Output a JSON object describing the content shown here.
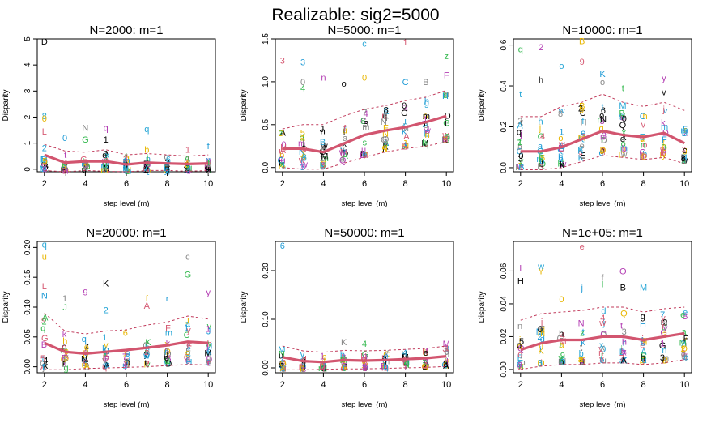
{
  "figure": {
    "title": "Realizable: sig2=5000"
  },
  "colors": {
    "axis": "#000000",
    "mean_line": "#d2556f",
    "band": "#c0395a",
    "points": [
      "#000000",
      "#d65a73",
      "#33b84e",
      "#26a6d6",
      "#1f9bd6",
      "#b33db3",
      "#e8b600",
      "#888888"
    ]
  },
  "chart_data": [
    {
      "type": "scatter",
      "title": "N=2000: m=1",
      "xlabel": "step level (m)",
      "ylabel": "Disparity",
      "xlim": [
        2,
        10
      ],
      "ylim": [
        -0.1,
        5.0
      ],
      "xticks": [
        2,
        4,
        6,
        8,
        10
      ],
      "yticks": [
        0,
        1,
        2,
        3,
        4,
        5
      ],
      "ytick_labels": [
        "0",
        "1",
        "2",
        "3",
        "4",
        "5"
      ],
      "x": [
        2,
        3,
        4,
        5,
        6,
        7,
        8,
        9,
        10
      ],
      "mean": [
        0.55,
        0.25,
        0.3,
        0.3,
        0.18,
        0.25,
        0.22,
        0.2,
        0.22
      ],
      "upper": [
        0.95,
        0.7,
        0.65,
        0.75,
        0.55,
        0.6,
        0.55,
        0.5,
        0.55
      ],
      "lower": [
        -0.05,
        -0.1,
        -0.05,
        -0.08,
        -0.1,
        -0.05,
        -0.05,
        -0.08,
        -0.05
      ],
      "outliers": [
        {
          "x": 2,
          "y": 4.9,
          "label": "D"
        },
        {
          "x": 2,
          "y": 2.05,
          "label": "8"
        },
        {
          "x": 2,
          "y": 1.95,
          "label": "0"
        },
        {
          "x": 2,
          "y": 1.45,
          "label": "L"
        },
        {
          "x": 3,
          "y": 1.2,
          "label": "0"
        },
        {
          "x": 4,
          "y": 1.6,
          "label": "N"
        },
        {
          "x": 4,
          "y": 1.15,
          "label": "G"
        },
        {
          "x": 5,
          "y": 1.6,
          "label": "q"
        },
        {
          "x": 5,
          "y": 1.15,
          "label": "1"
        },
        {
          "x": 7,
          "y": 1.55,
          "label": "q"
        },
        {
          "x": 7,
          "y": 0.75,
          "label": "b"
        },
        {
          "x": 9,
          "y": 0.75,
          "label": "1"
        },
        {
          "x": 10,
          "y": 0.9,
          "label": "f"
        }
      ]
    },
    {
      "type": "scatter",
      "title": "N=5000: m=1",
      "xlabel": "step level (m)",
      "ylabel": "Disparity",
      "xlim": [
        2,
        10
      ],
      "ylim": [
        -0.05,
        1.5
      ],
      "xticks": [
        2,
        4,
        6,
        8,
        10
      ],
      "yticks": [
        0.0,
        0.5,
        1.0,
        1.5
      ],
      "ytick_labels": [
        "0.0",
        "0.5",
        "1.0",
        "1.5"
      ],
      "x": [
        2,
        3,
        4,
        5,
        6,
        7,
        8,
        9,
        10
      ],
      "mean": [
        0.22,
        0.22,
        0.18,
        0.28,
        0.38,
        0.43,
        0.47,
        0.53,
        0.6
      ],
      "upper": [
        0.45,
        0.5,
        0.5,
        0.6,
        0.68,
        0.72,
        0.78,
        0.82,
        0.9
      ],
      "lower": [
        0.0,
        -0.02,
        -0.02,
        0.05,
        0.12,
        0.18,
        0.22,
        0.25,
        0.3
      ],
      "outliers": [
        {
          "x": 2,
          "y": 1.25,
          "label": "3"
        },
        {
          "x": 3,
          "y": 1.23,
          "label": "3"
        },
        {
          "x": 3,
          "y": 1.0,
          "label": "0"
        },
        {
          "x": 3,
          "y": 0.93,
          "label": "4"
        },
        {
          "x": 4,
          "y": 1.05,
          "label": "n"
        },
        {
          "x": 5,
          "y": 0.98,
          "label": "o"
        },
        {
          "x": 6,
          "y": 1.45,
          "label": "c"
        },
        {
          "x": 6,
          "y": 1.05,
          "label": "0"
        },
        {
          "x": 8,
          "y": 1.46,
          "label": "1"
        },
        {
          "x": 8,
          "y": 1.0,
          "label": "C"
        },
        {
          "x": 9,
          "y": 1.0,
          "label": "B"
        },
        {
          "x": 10,
          "y": 1.3,
          "label": "z"
        },
        {
          "x": 10,
          "y": 1.08,
          "label": "F"
        }
      ]
    },
    {
      "type": "scatter",
      "title": "N=10000: m=1",
      "xlabel": "step level (m)",
      "ylabel": "Disparity",
      "xlim": [
        2,
        10
      ],
      "ylim": [
        -0.02,
        0.63
      ],
      "xticks": [
        2,
        4,
        6,
        8,
        10
      ],
      "yticks": [
        0.0,
        0.2,
        0.4,
        0.6
      ],
      "ytick_labels": [
        "0.0",
        "0.2",
        "0.4",
        "0.6"
      ],
      "x": [
        2,
        3,
        4,
        5,
        6,
        7,
        8,
        9,
        10
      ],
      "mean": [
        0.08,
        0.08,
        0.1,
        0.14,
        0.18,
        0.16,
        0.15,
        0.17,
        0.12
      ],
      "upper": [
        0.25,
        0.25,
        0.3,
        0.32,
        0.36,
        0.32,
        0.3,
        0.32,
        0.28
      ],
      "lower": [
        -0.01,
        -0.01,
        0.0,
        0.03,
        0.06,
        0.05,
        0.04,
        0.05,
        0.02
      ],
      "outliers": [
        {
          "x": 2,
          "y": 0.58,
          "label": "q"
        },
        {
          "x": 3,
          "y": 0.59,
          "label": "2"
        },
        {
          "x": 3,
          "y": 0.43,
          "label": "h"
        },
        {
          "x": 4,
          "y": 0.5,
          "label": "o"
        },
        {
          "x": 5,
          "y": 0.62,
          "label": "B"
        },
        {
          "x": 5,
          "y": 0.52,
          "label": "9"
        },
        {
          "x": 6,
          "y": 0.46,
          "label": "K"
        },
        {
          "x": 6,
          "y": 0.42,
          "label": "o"
        },
        {
          "x": 7,
          "y": 0.39,
          "label": "t"
        },
        {
          "x": 9,
          "y": 0.44,
          "label": "y"
        },
        {
          "x": 9,
          "y": 0.37,
          "label": "v"
        },
        {
          "x": 2,
          "y": 0.36,
          "label": "t"
        }
      ]
    },
    {
      "type": "scatter",
      "title": "N=20000: m=1",
      "xlabel": "step level (m)",
      "ylabel": "Disparity",
      "xlim": [
        2,
        10
      ],
      "ylim": [
        -0.01,
        0.21
      ],
      "xticks": [
        2,
        4,
        6,
        8,
        10
      ],
      "yticks": [
        0.0,
        0.05,
        0.1,
        0.15,
        0.2
      ],
      "ytick_labels": [
        "0.00",
        "0.05",
        "0.10",
        "0.15",
        "0.20"
      ],
      "x": [
        2,
        3,
        4,
        5,
        6,
        7,
        8,
        9,
        10
      ],
      "mean": [
        0.04,
        0.025,
        0.022,
        0.025,
        0.028,
        0.032,
        0.036,
        0.042,
        0.04
      ],
      "upper": [
        0.09,
        0.06,
        0.055,
        0.06,
        0.062,
        0.07,
        0.075,
        0.085,
        0.08
      ],
      "lower": [
        -0.005,
        -0.005,
        -0.003,
        -0.002,
        -0.001,
        0.0,
        0.002,
        0.004,
        0.003
      ],
      "outliers": [
        {
          "x": 2,
          "y": 0.205,
          "label": "q"
        },
        {
          "x": 2,
          "y": 0.185,
          "label": "u"
        },
        {
          "x": 2,
          "y": 0.135,
          "label": "L"
        },
        {
          "x": 2,
          "y": 0.12,
          "label": "N"
        },
        {
          "x": 3,
          "y": 0.115,
          "label": "1"
        },
        {
          "x": 3,
          "y": 0.1,
          "label": "J"
        },
        {
          "x": 4,
          "y": 0.125,
          "label": "9"
        },
        {
          "x": 5,
          "y": 0.14,
          "label": "K"
        },
        {
          "x": 5,
          "y": 0.095,
          "label": "2"
        },
        {
          "x": 7,
          "y": 0.115,
          "label": "f"
        },
        {
          "x": 7,
          "y": 0.103,
          "label": "A"
        },
        {
          "x": 8,
          "y": 0.115,
          "label": "r"
        },
        {
          "x": 9,
          "y": 0.185,
          "label": "c"
        },
        {
          "x": 9,
          "y": 0.155,
          "label": "G"
        },
        {
          "x": 10,
          "y": 0.125,
          "label": "y"
        }
      ]
    },
    {
      "type": "scatter",
      "title": "N=50000: m=1",
      "xlabel": "step level (m)",
      "ylabel": "Disparity",
      "xlim": [
        2,
        10
      ],
      "ylim": [
        -0.01,
        0.26
      ],
      "xticks": [
        2,
        4,
        6,
        8,
        10
      ],
      "yticks": [
        0.0,
        0.1,
        0.2
      ],
      "ytick_labels": [
        "0.00",
        "0.10",
        "0.20"
      ],
      "x": [
        2,
        3,
        4,
        5,
        6,
        7,
        8,
        9,
        10
      ],
      "mean": [
        0.022,
        0.014,
        0.012,
        0.016,
        0.015,
        0.016,
        0.018,
        0.02,
        0.024
      ],
      "upper": [
        0.045,
        0.035,
        0.032,
        0.036,
        0.035,
        0.036,
        0.038,
        0.04,
        0.045
      ],
      "lower": [
        -0.004,
        -0.004,
        -0.003,
        -0.002,
        -0.002,
        -0.001,
        0.0,
        0.001,
        0.003
      ],
      "outliers": [
        {
          "x": 2,
          "y": 0.252,
          "label": "6"
        },
        {
          "x": 5,
          "y": 0.053,
          "label": "K"
        },
        {
          "x": 6,
          "y": 0.05,
          "label": "4"
        },
        {
          "x": 10,
          "y": 0.05,
          "label": "M"
        }
      ]
    },
    {
      "type": "scatter",
      "title": "N=1e+05: m=1",
      "xlabel": "step level (m)",
      "ylabel": "Disparity",
      "xlim": [
        2,
        10
      ],
      "ylim": [
        -0.002,
        0.078
      ],
      "xticks": [
        2,
        4,
        6,
        8,
        10
      ],
      "yticks": [
        0.0,
        0.02,
        0.04,
        0.06
      ],
      "ytick_labels": [
        "0.00",
        "0.02",
        "0.04",
        "0.06"
      ],
      "x": [
        2,
        3,
        4,
        5,
        6,
        7,
        8,
        9,
        10
      ],
      "mean": [
        0.012,
        0.016,
        0.018,
        0.018,
        0.02,
        0.02,
        0.018,
        0.02,
        0.022
      ],
      "upper": [
        0.03,
        0.034,
        0.035,
        0.036,
        0.038,
        0.038,
        0.035,
        0.037,
        0.038
      ],
      "lower": [
        0.0,
        0.002,
        0.003,
        0.003,
        0.004,
        0.004,
        0.003,
        0.004,
        0.006
      ],
      "outliers": [
        {
          "x": 2,
          "y": 0.062,
          "label": "I"
        },
        {
          "x": 2,
          "y": 0.054,
          "label": "H"
        },
        {
          "x": 3,
          "y": 0.063,
          "label": "w"
        },
        {
          "x": 3,
          "y": 0.06,
          "label": "Y"
        },
        {
          "x": 5,
          "y": 0.075,
          "label": "e"
        },
        {
          "x": 5,
          "y": 0.05,
          "label": "j"
        },
        {
          "x": 6,
          "y": 0.056,
          "label": "f"
        },
        {
          "x": 6,
          "y": 0.052,
          "label": "I"
        },
        {
          "x": 7,
          "y": 0.06,
          "label": "O"
        },
        {
          "x": 7,
          "y": 0.05,
          "label": "B"
        },
        {
          "x": 8,
          "y": 0.05,
          "label": "M"
        },
        {
          "x": 4,
          "y": 0.043,
          "label": "0"
        }
      ]
    }
  ]
}
